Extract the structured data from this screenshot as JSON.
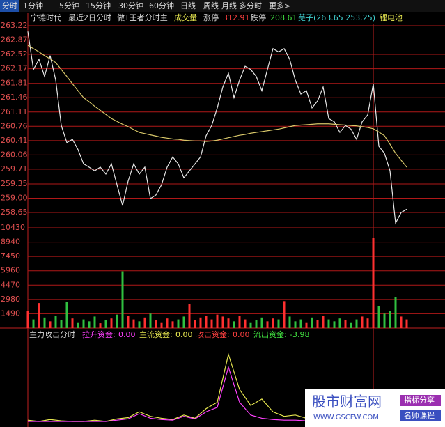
{
  "toolbar": {
    "tabs": [
      "分时",
      "1分钟",
      "5分钟",
      "15分钟",
      "30分钟",
      "60分钟",
      "日线",
      "周线",
      "月线",
      "多分时",
      "更多>"
    ]
  },
  "header": {
    "stock": "宁德时代",
    "period": "最近2日分时",
    "indicator": "做T王者分时主",
    "volume": "成交量",
    "limit_up_label": "涨停",
    "limit_up": "312.91",
    "limit_down_label": "跌停",
    "limit_down": "208.61",
    "range": "芜子(263.65 253.25)",
    "sector": "锂电池"
  },
  "chart_data": [
    {
      "type": "line",
      "grid": true,
      "ylim": [
        258.31,
        263.22
      ],
      "yticks": [
        263.22,
        262.87,
        262.52,
        262.17,
        261.81,
        261.46,
        261.11,
        260.76,
        260.41,
        260.06,
        259.71,
        259.35,
        {
          "value": 259,
          "label": "259.00"
        },
        258.65
      ],
      "series": [
        {
          "color": "#e6e6e6",
          "values": [
            263.08,
            262.15,
            262.4,
            261.98,
            262.49,
            261.89,
            260.78,
            260.36,
            260.44,
            260.19,
            259.84,
            259.76,
            259.67,
            259.76,
            259.59,
            259.84,
            259.33,
            258.82,
            259.42,
            259.84,
            259.59,
            259.76,
            258.99,
            259.08,
            259.33,
            259.76,
            260.01,
            259.84,
            259.5,
            259.67,
            259.84,
            260.01,
            260.53,
            260.78,
            261.21,
            261.72,
            262.06,
            261.46,
            261.89,
            262.23,
            262.15,
            261.98,
            261.63,
            262.15,
            262.66,
            262.58,
            262.66,
            262.4,
            261.89,
            261.55,
            261.63,
            261.21,
            261.38,
            261.72,
            260.95,
            260.87,
            260.61,
            260.78,
            260.69,
            260.44,
            260.87,
            261.04,
            261.8,
            260.27,
            260.1,
            259.67,
            258.39,
            258.65,
            258.73
          ]
        },
        {
          "color": "#d8c86a",
          "values": [
            262.74,
            262.66,
            262.58,
            262.49,
            262.41,
            262.32,
            262.15,
            261.98,
            261.8,
            261.63,
            261.46,
            261.36,
            261.25,
            261.15,
            261.05,
            260.95,
            260.88,
            260.81,
            260.75,
            260.68,
            260.61,
            260.58,
            260.55,
            260.52,
            260.49,
            260.47,
            260.45,
            260.44,
            260.42,
            260.41,
            260.4,
            260.4,
            260.39,
            260.4,
            260.42,
            260.45,
            260.48,
            260.51,
            260.54,
            260.56,
            260.59,
            260.61,
            260.63,
            260.65,
            260.67,
            260.69,
            260.72,
            260.75,
            260.78,
            260.79,
            260.8,
            260.81,
            260.82,
            260.82,
            260.82,
            260.81,
            260.8,
            260.79,
            260.78,
            260.77,
            260.75,
            260.73,
            260.7,
            260.62,
            260.53,
            260.32,
            260.1,
            259.93,
            259.76
          ]
        }
      ]
    },
    {
      "type": "bar",
      "grid": true,
      "up_color": "#ff3030",
      "down_color": "#30c040",
      "ylim": [
        0,
        10430
      ],
      "yticks": [
        10430,
        8940,
        7450,
        5960,
        4470,
        2980,
        1490
      ],
      "values": [
        1800,
        900,
        2600,
        1100,
        700,
        1300,
        800,
        2700,
        1000,
        600,
        900,
        700,
        1200,
        500,
        800,
        1000,
        1400,
        5900,
        1300,
        900,
        700,
        1100,
        1500,
        800,
        600,
        1000,
        700,
        900,
        1200,
        2500,
        800,
        1100,
        1300,
        900,
        1400,
        1200,
        1000,
        700,
        1300,
        900,
        600,
        800,
        1100,
        700,
        1000,
        900,
        2800,
        1200,
        700,
        900,
        600,
        1100,
        800,
        1300,
        900,
        700,
        1000,
        800,
        600,
        900,
        1200,
        1000,
        9400,
        2300,
        1500,
        1800,
        3200,
        1200,
        900
      ]
    },
    {
      "type": "line",
      "title": "主力攻击分时",
      "ylim": [
        0,
        120
      ],
      "readouts": [
        {
          "name": "拉升资金:",
          "value": "0.00",
          "color": "#ff40ff"
        },
        {
          "name": "主流资金:",
          "value": "0.00",
          "color": "#e8e850"
        },
        {
          "name": "攻击资金:",
          "value": "0.00",
          "color": "#ff4040"
        },
        {
          "name": "流出资金:",
          "value": "-3.98",
          "color": "#40e040"
        }
      ],
      "series": [
        {
          "color": "#e8e850",
          "values": [
            2,
            0,
            3,
            1,
            0,
            0,
            2,
            0,
            4,
            6,
            15,
            8,
            5,
            3,
            10,
            5,
            20,
            30,
            105,
            50,
            25,
            35,
            15,
            8,
            10,
            5,
            6,
            4,
            5,
            3,
            8,
            20,
            30,
            12,
            5
          ]
        },
        {
          "color": "#ff40ff",
          "values": [
            0,
            0,
            0,
            0,
            0,
            0,
            0,
            0,
            2,
            4,
            12,
            5,
            3,
            2,
            8,
            4,
            15,
            22,
            85,
            30,
            10,
            5,
            3,
            2,
            2,
            1,
            1,
            1,
            1,
            1,
            2,
            10,
            15,
            4,
            1
          ]
        }
      ]
    }
  ],
  "watermark": {
    "site": "股市财富网",
    "tag1": "指标分享",
    "url": "WWW.GSCFW.COM",
    "tag2": "名师课程"
  }
}
